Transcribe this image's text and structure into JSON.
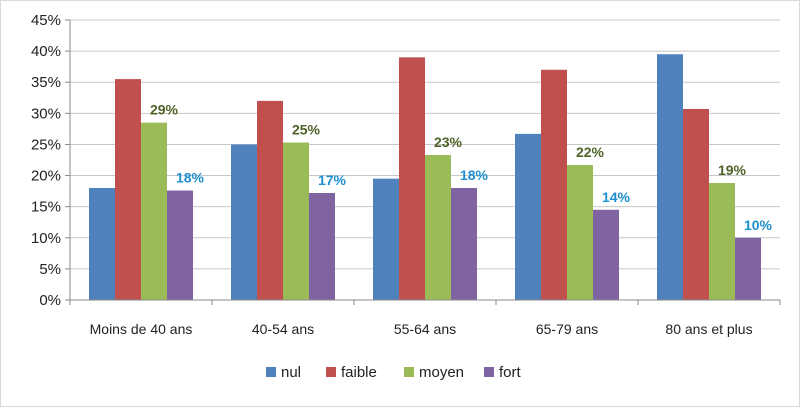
{
  "chart_data": {
    "type": "bar",
    "categories": [
      "Moins de 40 ans",
      "40-54 ans",
      "55-64 ans",
      "65-79 ans",
      "80 ans et plus"
    ],
    "series": [
      {
        "name": "nul",
        "color": "#4F81BD",
        "values": [
          18,
          25,
          19.5,
          26.7,
          39.5
        ]
      },
      {
        "name": "faible",
        "color": "#C0504D",
        "values": [
          35.5,
          32,
          39,
          37,
          30.7
        ]
      },
      {
        "name": "moyen",
        "color": "#9BBB59",
        "values": [
          28.5,
          25.3,
          23.3,
          21.7,
          18.8
        ]
      },
      {
        "name": "fort",
        "color": "#8064A2",
        "values": [
          17.6,
          17.2,
          18,
          14.5,
          10
        ]
      }
    ],
    "data_labels": [
      {
        "series": "moyen",
        "texts": [
          "29%",
          "25%",
          "23%",
          "22%",
          "19%"
        ],
        "color": "#4F6228"
      },
      {
        "series": "fort",
        "texts": [
          "18%",
          "17%",
          "18%",
          "14%",
          "10%"
        ],
        "color": "#1F8FCF"
      }
    ],
    "yticks": [
      "0%",
      "5%",
      "10%",
      "15%",
      "20%",
      "25%",
      "30%",
      "35%",
      "40%",
      "45%"
    ],
    "ylim": [
      0,
      45
    ],
    "grid": true,
    "legend_position": "bottom"
  }
}
